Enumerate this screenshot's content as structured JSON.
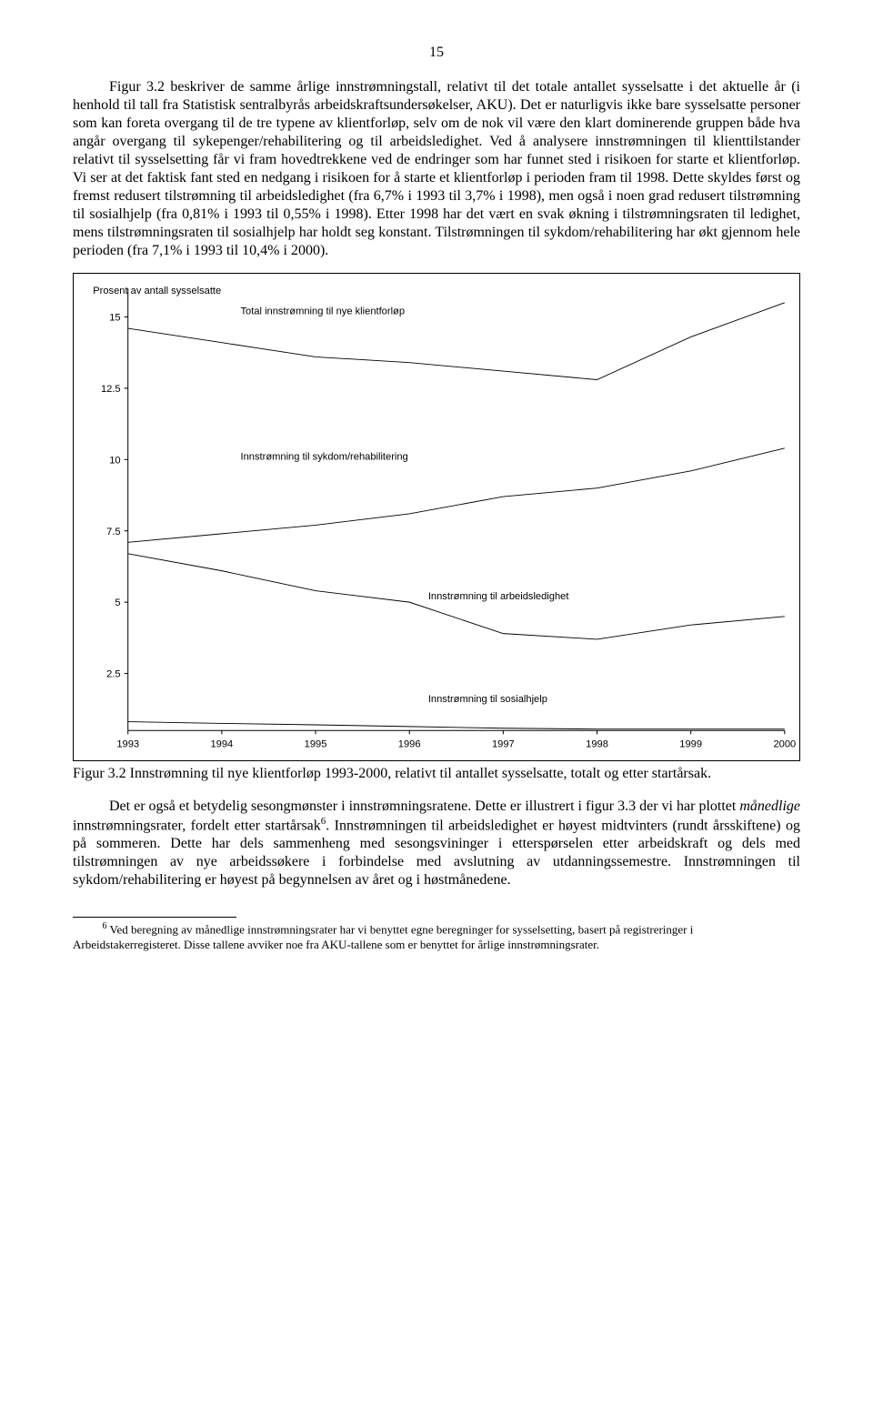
{
  "page_number": "15",
  "para1_a": "Figur 3.2 beskriver de samme årlige innstrømningstall, relativt til det totale antallet sysselsatte i det aktuelle år (i henhold til tall fra Statistisk sentralbyrås arbeidskraftsundersøkelser, AKU). Det er naturligvis ikke bare sysselsatte personer som kan foreta overgang til de tre typene av klientforløp, selv om de nok vil være den klart dominerende gruppen både hva angår overgang til sykepenger/rehabilitering og til arbeidsledighet. Ved å analysere innstrømningen til klienttilstander relativt til sysselsetting får vi fram hovedtrekkene ved de endringer som har funnet sted i risikoen for starte et klientforløp. Vi ser at det faktisk fant sted en nedgang i risikoen for å starte et klientforløp i perioden fram til 1998. Dette skyldes først og fremst redusert tilstrømning til arbeidsledighet (fra 6,7% i 1993 til 3,7% i 1998), men også i noen grad redusert tilstrømning til sosialhjelp (fra 0,81% i 1993 til 0,55% i 1998). Etter 1998 har det vært en svak økning i tilstrømningsraten til ledighet, mens tilstrømningsraten til sosialhjelp har holdt seg konstant. Tilstrømningen til sykdom/rehabilitering har økt gjennom hele perioden (fra 7,1% i 1993 til 10,4% i 2000).",
  "caption": "Figur 3.2 Innstrømning til nye klientforløp 1993-2000, relativt til antallet sysselsatte, totalt og etter startårsak.",
  "para2_a": "Det er også et betydelig sesongmønster i innstrømningsratene. Dette er illustrert i figur 3.3 der vi har plottet ",
  "para2_em": "månedlige",
  "para2_b": " innstrømningsrater, fordelt etter startårsak",
  "para2_sup": "6",
  "para2_c": ". Innstrømningen til arbeidsledighet er høyest midtvinters (rundt årsskiftene) og på sommeren. Dette har dels sammenheng med sesongsvininger i etterspørselen etter arbeidskraft og dels med tilstrømningen av nye arbeidssøkere i forbindelse med avslutning av utdanningssemestre. Innstrømningen til sykdom/rehabilitering er høyest på begynnelsen av året og i høstmånedene.",
  "footnote_num": "6",
  "footnote_text": " Ved beregning av månedlige innstrømningsrater har vi benyttet egne beregninger for sysselsetting, basert på registreringer i Arbeidstakerregisteret. Disse tallene avviker noe fra AKU-tallene som er benyttet for årlige innstrømningsrater.",
  "chart": {
    "type": "line",
    "y_axis_title": "Prosent av antall sysselsatte",
    "y_ticks": [
      "15",
      "12.5",
      "10",
      "7.5",
      "5",
      "2.5"
    ],
    "y_min": 0.5,
    "y_max": 16.0,
    "x_ticks": [
      "1993",
      "1994",
      "1995",
      "1996",
      "1997",
      "1998",
      "1999",
      "2000"
    ],
    "x_min": 1993,
    "x_max": 2000,
    "line_color": "#000000",
    "line_width": 0.9,
    "font_family": "Arial, Helvetica, sans-serif",
    "axis_font_size": 11,
    "title_font_size": 11,
    "label_font_size": 11,
    "series": [
      {
        "label": "Total innstrømning til nye klientforløp",
        "label_x": 1994.2,
        "label_y": 15.1,
        "values": [
          [
            1993,
            14.6
          ],
          [
            1994,
            14.1
          ],
          [
            1995,
            13.6
          ],
          [
            1996,
            13.4
          ],
          [
            1997,
            13.1
          ],
          [
            1998,
            12.8
          ],
          [
            1999,
            14.3
          ],
          [
            2000,
            15.5
          ]
        ]
      },
      {
        "label": "Innstrømning til sykdom/rehabilitering",
        "label_x": 1994.2,
        "label_y": 10.0,
        "values": [
          [
            1993,
            7.1
          ],
          [
            1994,
            7.4
          ],
          [
            1995,
            7.7
          ],
          [
            1996,
            8.1
          ],
          [
            1997,
            8.7
          ],
          [
            1998,
            9.0
          ],
          [
            1999,
            9.6
          ],
          [
            2000,
            10.4
          ]
        ]
      },
      {
        "label": "Innstrømning til arbeidsledighet",
        "label_x": 1996.2,
        "label_y": 5.1,
        "values": [
          [
            1993,
            6.7
          ],
          [
            1994,
            6.1
          ],
          [
            1995,
            5.4
          ],
          [
            1996,
            5.0
          ],
          [
            1997,
            3.9
          ],
          [
            1998,
            3.7
          ],
          [
            1999,
            4.2
          ],
          [
            2000,
            4.5
          ]
        ]
      },
      {
        "label": "Innstrømning til sosialhjelp",
        "label_x": 1996.2,
        "label_y": 1.5,
        "values": [
          [
            1993,
            0.81
          ],
          [
            1994,
            0.75
          ],
          [
            1995,
            0.7
          ],
          [
            1996,
            0.64
          ],
          [
            1997,
            0.58
          ],
          [
            1998,
            0.55
          ],
          [
            1999,
            0.55
          ],
          [
            2000,
            0.55
          ]
        ]
      }
    ]
  }
}
